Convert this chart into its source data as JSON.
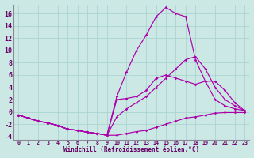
{
  "xlabel": "Windchill (Refroidissement éolien,°C)",
  "bg_color": "#cce8e4",
  "grid_color": "#aad4d0",
  "line_color": "#aa00aa",
  "series": [
    {
      "x": [
        0,
        1,
        2,
        3,
        4,
        5,
        6,
        7,
        8,
        9,
        10,
        11,
        12,
        13,
        14,
        15,
        16,
        17,
        18,
        19,
        20,
        21,
        22,
        23
      ],
      "y": [
        -0.5,
        -1.0,
        -1.5,
        -1.8,
        -2.2,
        -2.8,
        -3.0,
        -3.3,
        -3.5,
        -3.8,
        -3.8,
        -3.5,
        -3.2,
        -3.0,
        -2.5,
        -2.0,
        -1.5,
        -1.0,
        -0.8,
        -0.5,
        -0.2,
        -0.1,
        -0.1,
        -0.1
      ]
    },
    {
      "x": [
        0,
        1,
        2,
        3,
        4,
        5,
        6,
        7,
        8,
        9,
        10,
        11,
        12,
        13,
        14,
        15,
        16,
        17,
        18,
        19,
        20,
        21,
        22,
        23
      ],
      "y": [
        -0.5,
        -1.0,
        -1.5,
        -1.8,
        -2.2,
        -2.8,
        -3.0,
        -3.3,
        -3.5,
        -3.8,
        -0.8,
        0.5,
        1.5,
        2.5,
        4.0,
        5.5,
        7.0,
        8.5,
        9.0,
        7.0,
        4.0,
        2.0,
        1.0,
        0.2
      ]
    },
    {
      "x": [
        0,
        1,
        2,
        3,
        4,
        5,
        6,
        7,
        8,
        9,
        10,
        11,
        12,
        13,
        14,
        15,
        16,
        17,
        18,
        19,
        20,
        21,
        22,
        23
      ],
      "y": [
        -0.5,
        -1.0,
        -1.5,
        -1.8,
        -2.2,
        -2.8,
        -3.0,
        -3.3,
        -3.5,
        -3.8,
        2.0,
        2.2,
        2.5,
        3.5,
        5.5,
        6.0,
        5.5,
        5.0,
        4.5,
        5.0,
        5.0,
        3.5,
        1.5,
        0.2
      ]
    },
    {
      "x": [
        0,
        1,
        2,
        3,
        4,
        5,
        6,
        7,
        8,
        9,
        10,
        11,
        12,
        13,
        14,
        15,
        16,
        17,
        18,
        19,
        20,
        21,
        22,
        23
      ],
      "y": [
        -0.5,
        -1.0,
        -1.5,
        -1.8,
        -2.2,
        -2.8,
        -3.0,
        -3.3,
        -3.5,
        -3.8,
        2.5,
        6.5,
        10.0,
        12.5,
        15.5,
        17.0,
        16.0,
        15.5,
        8.5,
        5.0,
        2.0,
        1.0,
        0.5,
        0.2
      ]
    }
  ],
  "xlim": [
    -0.5,
    23.5
  ],
  "ylim": [
    -4.5,
    17.5
  ],
  "yticks": [
    -4,
    -2,
    0,
    2,
    4,
    6,
    8,
    10,
    12,
    14,
    16
  ],
  "xticks": [
    0,
    1,
    2,
    3,
    4,
    5,
    6,
    7,
    8,
    9,
    10,
    11,
    12,
    13,
    14,
    15,
    16,
    17,
    18,
    19,
    20,
    21,
    22,
    23
  ],
  "xlabel_fontsize": 5.5,
  "tick_fontsize_y": 6.0,
  "tick_fontsize_x": 4.8
}
